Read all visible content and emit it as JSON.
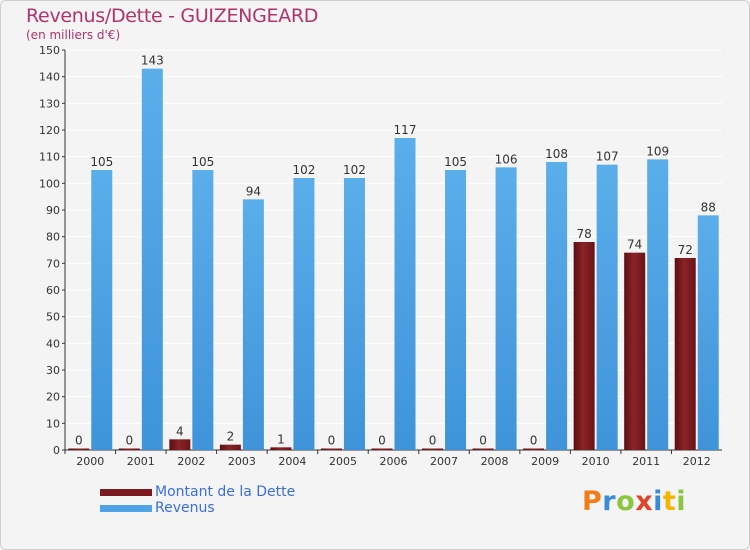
{
  "title": "Revenus/Dette - GUIZENGEARD",
  "subtitle": "(en milliers d'€)",
  "logo": {
    "letters": [
      "P",
      "r",
      "o",
      "x",
      "i",
      "t",
      "i"
    ],
    "colors": [
      "#f07d1a",
      "#3a8ad8",
      "#8cc63f",
      "#e0452b",
      "#3a8ad8",
      "#f4b400",
      "#8cc63f"
    ]
  },
  "chart_data": {
    "type": "bar",
    "title": "Revenus/Dette - GUIZENGEARD",
    "subtitle": "(en milliers d'€)",
    "categories": [
      "2000",
      "2001",
      "2002",
      "2003",
      "2004",
      "2005",
      "2006",
      "2007",
      "2008",
      "2009",
      "2010",
      "2011",
      "2012"
    ],
    "series": [
      {
        "name": "Montant de la Dette",
        "color": "#7a1a1e",
        "values": [
          0,
          0,
          4,
          2,
          1,
          0,
          0,
          0,
          0,
          0,
          78,
          74,
          72
        ]
      },
      {
        "name": "Revenus",
        "color": "#4da3e6",
        "values": [
          105,
          143,
          105,
          94,
          102,
          102,
          117,
          105,
          106,
          108,
          107,
          109,
          88
        ]
      }
    ],
    "ylim": [
      0,
      150
    ],
    "yticks": [
      0,
      10,
      20,
      30,
      40,
      50,
      60,
      70,
      80,
      90,
      100,
      110,
      120,
      130,
      140,
      150
    ],
    "grid": true,
    "legend": "bottom-left"
  }
}
